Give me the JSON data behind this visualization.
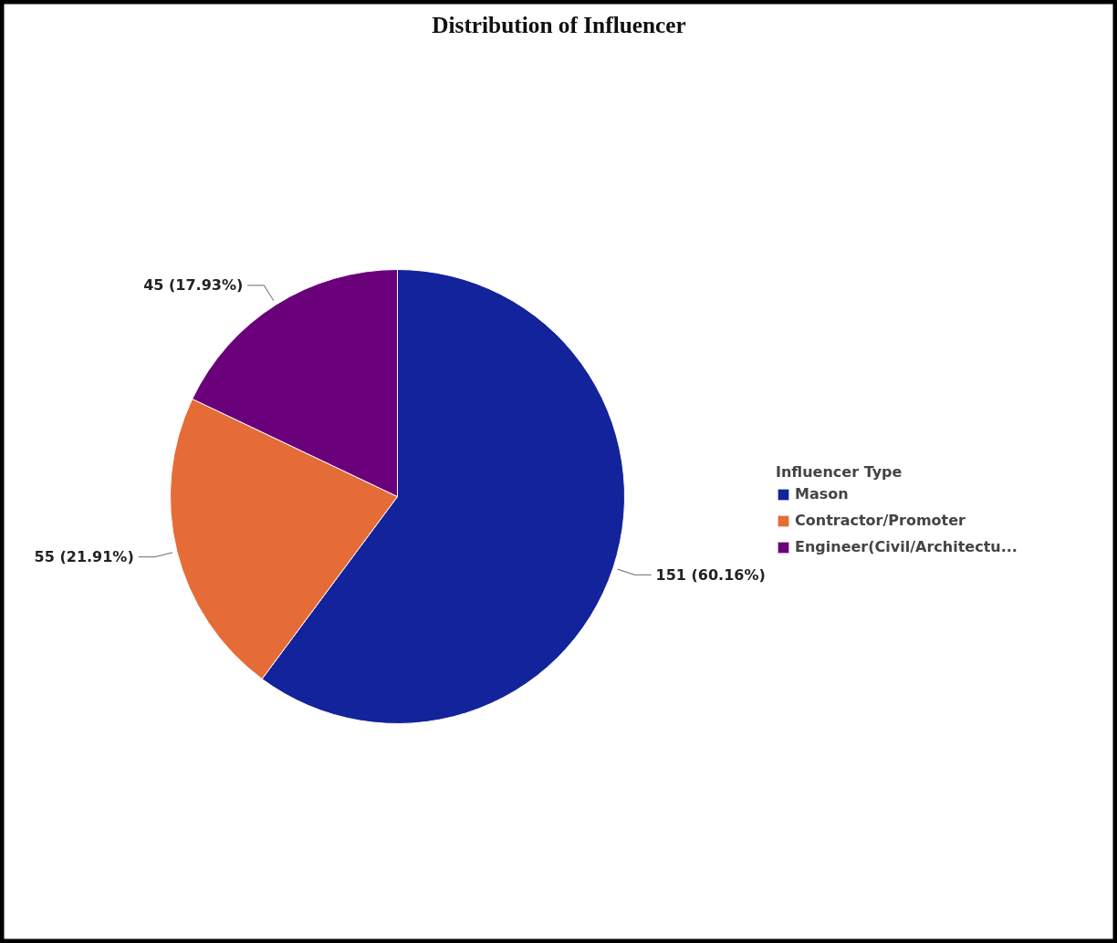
{
  "chart_data": {
    "type": "pie",
    "title": "Distribution of Influencer",
    "legend_title": "Influencer Type",
    "categories": [
      "Mason",
      "Contractor/Promoter",
      "Engineer(Civil/Architectu..."
    ],
    "values": [
      151,
      55,
      45
    ],
    "colors": [
      "#13239b",
      "#e56b37",
      "#6a007a"
    ],
    "value_labels": [
      "151 (60.16%)",
      "55 (21.91%)",
      "45 (17.93%)"
    ],
    "legend": "right"
  }
}
